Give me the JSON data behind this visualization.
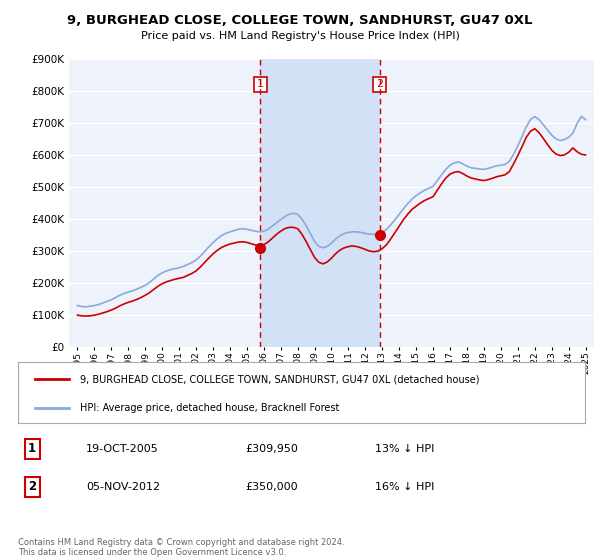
{
  "title": "9, BURGHEAD CLOSE, COLLEGE TOWN, SANDHURST, GU47 0XL",
  "subtitle": "Price paid vs. HM Land Registry's House Price Index (HPI)",
  "legend_line1": "9, BURGHEAD CLOSE, COLLEGE TOWN, SANDHURST, GU47 0XL (detached house)",
  "legend_line2": "HPI: Average price, detached house, Bracknell Forest",
  "transaction1_date": "19-OCT-2005",
  "transaction1_price": "£309,950",
  "transaction1_hpi": "13% ↓ HPI",
  "transaction2_date": "05-NOV-2012",
  "transaction2_price": "£350,000",
  "transaction2_hpi": "16% ↓ HPI",
  "footer": "Contains HM Land Registry data © Crown copyright and database right 2024.\nThis data is licensed under the Open Government Licence v3.0.",
  "ylim": [
    0,
    900000
  ],
  "yticks": [
    0,
    100000,
    200000,
    300000,
    400000,
    500000,
    600000,
    700000,
    800000,
    900000
  ],
  "background_color": "#ffffff",
  "plot_bg_color": "#eef2fa",
  "grid_color": "#ffffff",
  "line_color_red": "#cc0000",
  "line_color_blue": "#88aadd",
  "highlight_color": "#ccddf5",
  "vline_color": "#cc0000",
  "marker1_x": 2005.8,
  "marker1_y": 309950,
  "marker2_x": 2012.85,
  "marker2_y": 350000,
  "vline1_x": 2005.8,
  "vline2_x": 2012.85,
  "hpi_x": [
    1995.0,
    1995.25,
    1995.5,
    1995.75,
    1996.0,
    1996.25,
    1996.5,
    1996.75,
    1997.0,
    1997.25,
    1997.5,
    1997.75,
    1998.0,
    1998.25,
    1998.5,
    1998.75,
    1999.0,
    1999.25,
    1999.5,
    1999.75,
    2000.0,
    2000.25,
    2000.5,
    2000.75,
    2001.0,
    2001.25,
    2001.5,
    2001.75,
    2002.0,
    2002.25,
    2002.5,
    2002.75,
    2003.0,
    2003.25,
    2003.5,
    2003.75,
    2004.0,
    2004.25,
    2004.5,
    2004.75,
    2005.0,
    2005.25,
    2005.5,
    2005.75,
    2006.0,
    2006.25,
    2006.5,
    2006.75,
    2007.0,
    2007.25,
    2007.5,
    2007.75,
    2008.0,
    2008.25,
    2008.5,
    2008.75,
    2009.0,
    2009.25,
    2009.5,
    2009.75,
    2010.0,
    2010.25,
    2010.5,
    2010.75,
    2011.0,
    2011.25,
    2011.5,
    2011.75,
    2012.0,
    2012.25,
    2012.5,
    2012.75,
    2013.0,
    2013.25,
    2013.5,
    2013.75,
    2014.0,
    2014.25,
    2014.5,
    2014.75,
    2015.0,
    2015.25,
    2015.5,
    2015.75,
    2016.0,
    2016.25,
    2016.5,
    2016.75,
    2017.0,
    2017.25,
    2017.5,
    2017.75,
    2018.0,
    2018.25,
    2018.5,
    2018.75,
    2019.0,
    2019.25,
    2019.5,
    2019.75,
    2020.0,
    2020.25,
    2020.5,
    2020.75,
    2021.0,
    2021.25,
    2021.5,
    2021.75,
    2022.0,
    2022.25,
    2022.5,
    2022.75,
    2023.0,
    2023.25,
    2023.5,
    2023.75,
    2024.0,
    2024.25,
    2024.5,
    2024.75,
    2025.0
  ],
  "hpi_y": [
    130000,
    127000,
    126000,
    128000,
    130000,
    133000,
    138000,
    143000,
    148000,
    155000,
    162000,
    168000,
    172000,
    176000,
    181000,
    187000,
    193000,
    202000,
    213000,
    224000,
    232000,
    238000,
    242000,
    245000,
    248000,
    252000,
    258000,
    264000,
    272000,
    284000,
    298000,
    313000,
    326000,
    338000,
    348000,
    355000,
    360000,
    364000,
    368000,
    370000,
    368000,
    365000,
    362000,
    360000,
    362000,
    368000,
    378000,
    388000,
    398000,
    408000,
    415000,
    418000,
    415000,
    400000,
    380000,
    355000,
    330000,
    315000,
    310000,
    315000,
    325000,
    338000,
    348000,
    355000,
    358000,
    360000,
    360000,
    358000,
    355000,
    353000,
    352000,
    353000,
    358000,
    368000,
    382000,
    398000,
    415000,
    432000,
    448000,
    462000,
    473000,
    482000,
    490000,
    496000,
    502000,
    520000,
    538000,
    555000,
    568000,
    575000,
    578000,
    572000,
    565000,
    560000,
    558000,
    556000,
    555000,
    558000,
    562000,
    566000,
    568000,
    570000,
    580000,
    602000,
    628000,
    658000,
    688000,
    710000,
    720000,
    710000,
    695000,
    678000,
    662000,
    650000,
    645000,
    648000,
    655000,
    668000,
    698000,
    720000,
    710000
  ],
  "red_x": [
    1995.0,
    1995.25,
    1995.5,
    1995.75,
    1996.0,
    1996.25,
    1996.5,
    1996.75,
    1997.0,
    1997.25,
    1997.5,
    1997.75,
    1998.0,
    1998.25,
    1998.5,
    1998.75,
    1999.0,
    1999.25,
    1999.5,
    1999.75,
    2000.0,
    2000.25,
    2000.5,
    2000.75,
    2001.0,
    2001.25,
    2001.5,
    2001.75,
    2002.0,
    2002.25,
    2002.5,
    2002.75,
    2003.0,
    2003.25,
    2003.5,
    2003.75,
    2004.0,
    2004.25,
    2004.5,
    2004.75,
    2005.0,
    2005.25,
    2005.5,
    2005.75,
    2006.0,
    2006.25,
    2006.5,
    2006.75,
    2007.0,
    2007.25,
    2007.5,
    2007.75,
    2008.0,
    2008.25,
    2008.5,
    2008.75,
    2009.0,
    2009.25,
    2009.5,
    2009.75,
    2010.0,
    2010.25,
    2010.5,
    2010.75,
    2011.0,
    2011.25,
    2011.5,
    2011.75,
    2012.0,
    2012.25,
    2012.5,
    2012.75,
    2013.0,
    2013.25,
    2013.5,
    2013.75,
    2014.0,
    2014.25,
    2014.5,
    2014.75,
    2015.0,
    2015.25,
    2015.5,
    2015.75,
    2016.0,
    2016.25,
    2016.5,
    2016.75,
    2017.0,
    2017.25,
    2017.5,
    2017.75,
    2018.0,
    2018.25,
    2018.5,
    2018.75,
    2019.0,
    2019.25,
    2019.5,
    2019.75,
    2020.0,
    2020.25,
    2020.5,
    2020.75,
    2021.0,
    2021.25,
    2021.5,
    2021.75,
    2022.0,
    2022.25,
    2022.5,
    2022.75,
    2023.0,
    2023.25,
    2023.5,
    2023.75,
    2024.0,
    2024.25,
    2024.5,
    2024.75,
    2025.0
  ],
  "red_y": [
    100000,
    98000,
    97000,
    98000,
    100000,
    103000,
    107000,
    111000,
    116000,
    122000,
    129000,
    135000,
    140000,
    144000,
    149000,
    155000,
    162000,
    170000,
    180000,
    190000,
    198000,
    204000,
    208000,
    212000,
    215000,
    218000,
    224000,
    230000,
    238000,
    250000,
    264000,
    278000,
    291000,
    302000,
    311000,
    317000,
    322000,
    325000,
    328000,
    329000,
    327000,
    323000,
    319000,
    317000,
    320000,
    328000,
    340000,
    352000,
    362000,
    370000,
    374000,
    374000,
    370000,
    353000,
    330000,
    305000,
    280000,
    265000,
    260000,
    266000,
    278000,
    292000,
    303000,
    310000,
    314000,
    316000,
    314000,
    310000,
    305000,
    300000,
    298000,
    300000,
    308000,
    320000,
    338000,
    358000,
    378000,
    398000,
    415000,
    430000,
    440000,
    450000,
    458000,
    464000,
    470000,
    490000,
    510000,
    528000,
    540000,
    546000,
    548000,
    542000,
    534000,
    528000,
    525000,
    522000,
    520000,
    523000,
    527000,
    532000,
    535000,
    538000,
    548000,
    572000,
    598000,
    626000,
    655000,
    674000,
    682000,
    670000,
    652000,
    633000,
    615000,
    603000,
    598000,
    600000,
    608000,
    622000,
    610000,
    602000,
    600000
  ],
  "xtick_years": [
    1995,
    1996,
    1997,
    1998,
    1999,
    2000,
    2001,
    2002,
    2003,
    2004,
    2005,
    2006,
    2007,
    2008,
    2009,
    2010,
    2011,
    2012,
    2013,
    2014,
    2015,
    2016,
    2017,
    2018,
    2019,
    2020,
    2021,
    2022,
    2023,
    2024,
    2025
  ]
}
